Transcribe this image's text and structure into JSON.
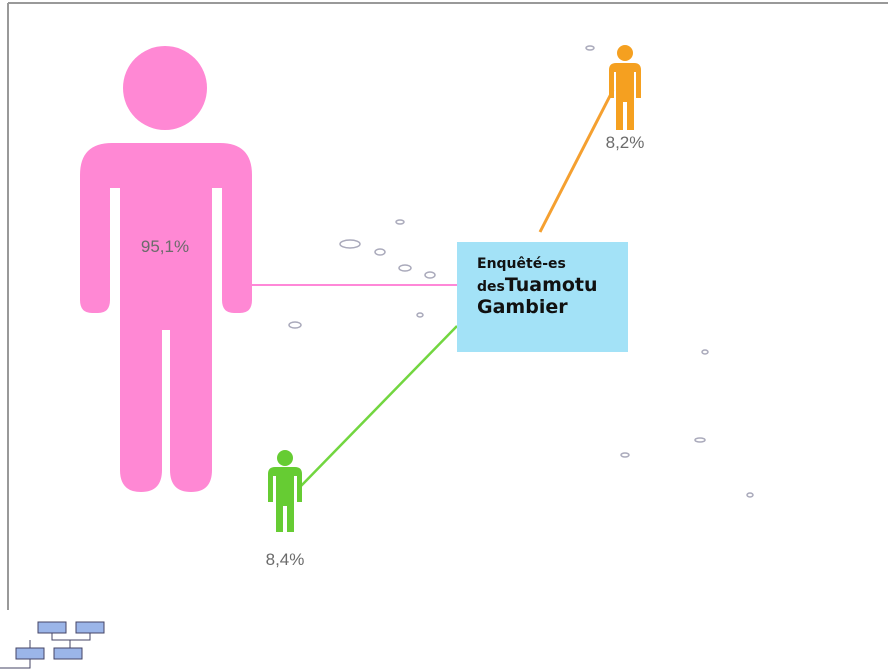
{
  "center": {
    "line1": "Enquêté-es",
    "line2_prefix": "des",
    "line2_name": "Tuamotu",
    "line3": "Gambier"
  },
  "nodes": [
    {
      "label": "95,1%"
    },
    {
      "label": "8,2%"
    },
    {
      "label": "8,4%"
    }
  ]
}
